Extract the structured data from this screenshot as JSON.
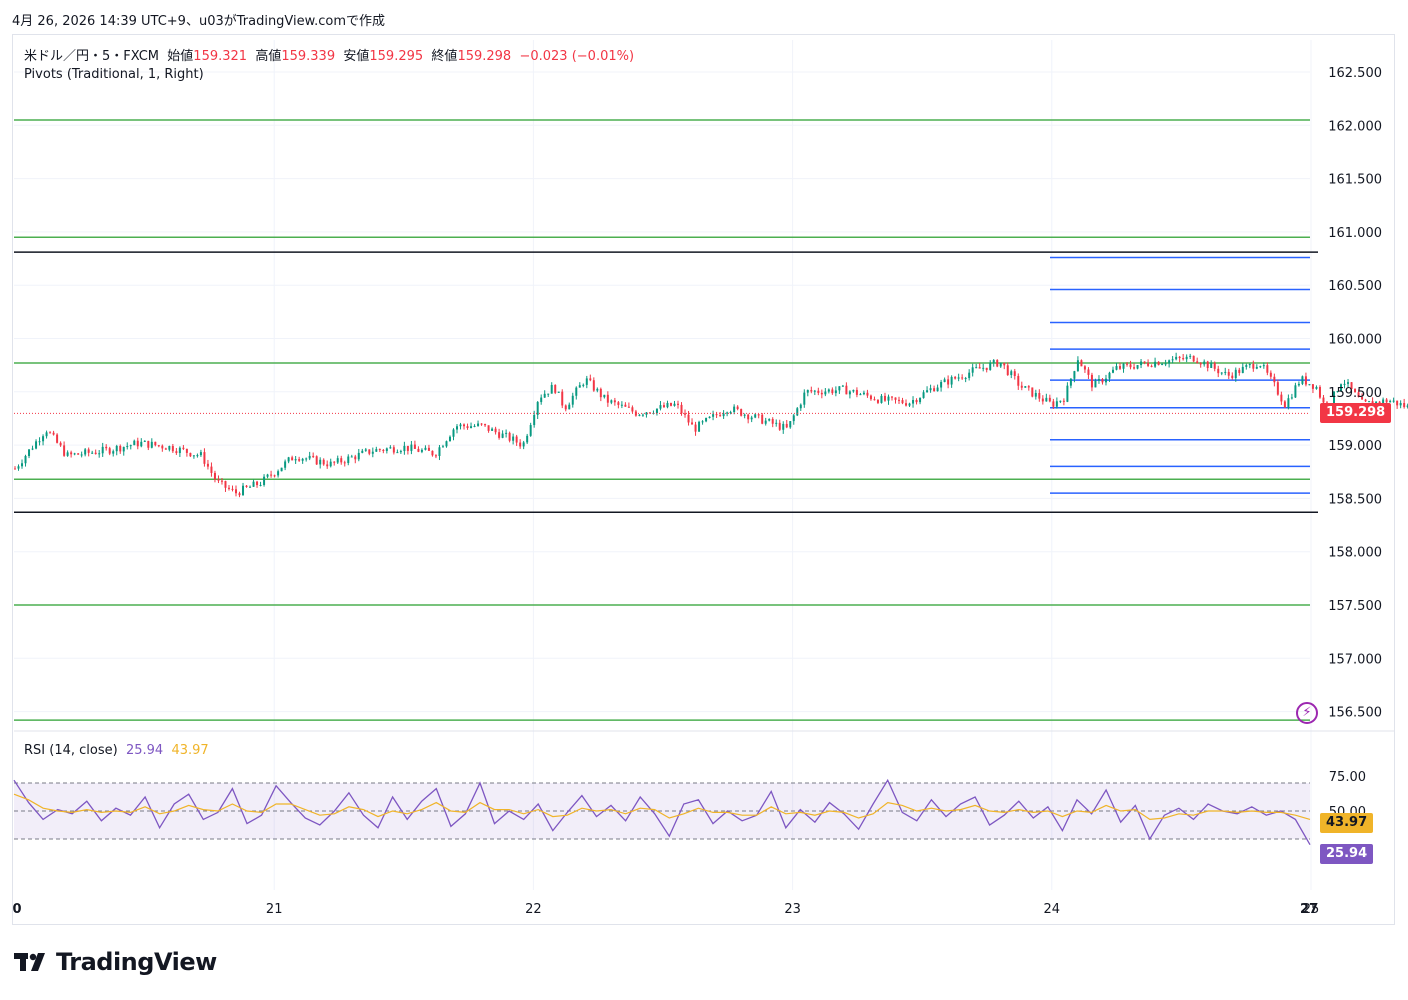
{
  "header": {
    "text": "4月 26, 2026 14:39 UTC+9、u03がTradingView.comで作成"
  },
  "legend": {
    "symbol": "米ドル／円・5・FXCM",
    "open_label": "始値",
    "open": "159.321",
    "high_label": "高値",
    "high": "159.339",
    "low_label": "安値",
    "low": "159.295",
    "close_label": "終値",
    "close": "159.298",
    "change": "−0.023 (−0.01%)",
    "pivots": "Pivots (Traditional, 1, Right)",
    "rsi_label": "RSI (14, close)",
    "rsi_value": "25.94",
    "rsi_ma_value": "43.97"
  },
  "price_tag": {
    "value": "159.298",
    "color": "#f23645"
  },
  "rsi_tags": {
    "ma": "43.97",
    "rsi": "25.94",
    "ma_color": "#f0b429",
    "rsi_color": "#7e57c2"
  },
  "logo": {
    "text": "TradingView",
    "icon": "tradingview-logo-icon"
  },
  "bolt_icon": "lightning-icon",
  "chart_data": [
    {
      "type": "candlestick",
      "title": "",
      "y_ticks": [
        "162.500",
        "162.000",
        "161.500",
        "161.000",
        "160.500",
        "160.000",
        "159.500",
        "159.000",
        "158.500",
        "158.000",
        "157.500",
        "157.000",
        "156.500"
      ],
      "ylim": [
        156.35,
        162.75
      ],
      "x_ticks": [
        "0",
        "21",
        "22",
        "23",
        "24",
        "25",
        "27"
      ],
      "price_path": [
        {
          "day": 20.0,
          "price": 158.78
        },
        {
          "day": 20.12,
          "price": 159.15
        },
        {
          "day": 20.2,
          "price": 158.9
        },
        {
          "day": 20.35,
          "price": 158.95
        },
        {
          "day": 20.48,
          "price": 159.02
        },
        {
          "day": 20.6,
          "price": 158.98
        },
        {
          "day": 20.72,
          "price": 158.9
        },
        {
          "day": 20.78,
          "price": 158.65
        },
        {
          "day": 20.85,
          "price": 158.55
        },
        {
          "day": 20.95,
          "price": 158.65
        },
        {
          "day": 21.08,
          "price": 158.9
        },
        {
          "day": 21.22,
          "price": 158.82
        },
        {
          "day": 21.38,
          "price": 158.95
        },
        {
          "day": 21.5,
          "price": 158.98
        },
        {
          "day": 21.62,
          "price": 158.92
        },
        {
          "day": 21.7,
          "price": 159.18
        },
        {
          "day": 21.8,
          "price": 159.18
        },
        {
          "day": 21.92,
          "price": 159.05
        },
        {
          "day": 21.96,
          "price": 159.0
        },
        {
          "day": 22.02,
          "price": 159.45
        },
        {
          "day": 22.08,
          "price": 159.55
        },
        {
          "day": 22.12,
          "price": 159.35
        },
        {
          "day": 22.2,
          "price": 159.62
        },
        {
          "day": 22.28,
          "price": 159.42
        },
        {
          "day": 22.4,
          "price": 159.3
        },
        {
          "day": 22.55,
          "price": 159.38
        },
        {
          "day": 22.62,
          "price": 159.15
        },
        {
          "day": 22.75,
          "price": 159.35
        },
        {
          "day": 22.9,
          "price": 159.22
        },
        {
          "day": 22.98,
          "price": 159.15
        },
        {
          "day": 23.05,
          "price": 159.5
        },
        {
          "day": 23.2,
          "price": 159.52
        },
        {
          "day": 23.35,
          "price": 159.42
        },
        {
          "day": 23.45,
          "price": 159.4
        },
        {
          "day": 23.55,
          "price": 159.55
        },
        {
          "day": 23.7,
          "price": 159.7
        },
        {
          "day": 23.8,
          "price": 159.78
        },
        {
          "day": 23.88,
          "price": 159.55
        },
        {
          "day": 24.0,
          "price": 159.38
        },
        {
          "day": 24.05,
          "price": 159.45
        },
        {
          "day": 24.1,
          "price": 159.82
        },
        {
          "day": 24.16,
          "price": 159.55
        },
        {
          "day": 24.25,
          "price": 159.72
        },
        {
          "day": 24.4,
          "price": 159.78
        },
        {
          "day": 24.55,
          "price": 159.82
        },
        {
          "day": 24.68,
          "price": 159.65
        },
        {
          "day": 24.8,
          "price": 159.78
        },
        {
          "day": 24.86,
          "price": 159.55
        },
        {
          "day": 24.9,
          "price": 159.38
        },
        {
          "day": 24.96,
          "price": 159.62
        },
        {
          "day": 25.02,
          "price": 159.55
        },
        {
          "day": 25.06,
          "price": 159.32
        },
        {
          "day": 25.12,
          "price": 159.62
        },
        {
          "day": 25.2,
          "price": 159.38
        },
        {
          "day": 25.3,
          "price": 159.42
        },
        {
          "day": 25.38,
          "price": 159.35
        },
        {
          "day": 25.4,
          "price": 159.3
        }
      ],
      "pivot_levels_green": [
        162.05,
        160.95,
        159.77,
        158.68,
        157.5,
        156.42
      ],
      "pivot_levels_black": [
        160.81,
        158.37
      ],
      "pivot_levels_blue": [
        160.76,
        160.46,
        160.15,
        159.9,
        159.61,
        159.35,
        159.05,
        158.8,
        158.55
      ],
      "last_price": 159.298
    },
    {
      "type": "line",
      "title": "",
      "y_ticks": [
        "75.00",
        "50.00"
      ],
      "ylim": [
        15,
        100
      ],
      "band": [
        30,
        70
      ],
      "series": [
        {
          "values": [
            72,
            56,
            44,
            51,
            48,
            57,
            43,
            52,
            47,
            60,
            38,
            55,
            62,
            44,
            49,
            66,
            41,
            47,
            68,
            56,
            45,
            40,
            50,
            63,
            47,
            38,
            60,
            44,
            57,
            66,
            39,
            48,
            70,
            41,
            50,
            44,
            55,
            36,
            49,
            61,
            46,
            54,
            43,
            60,
            48,
            32,
            55,
            58,
            41,
            50,
            43,
            47,
            64,
            38,
            51,
            42,
            56,
            48,
            37,
            55,
            72,
            49,
            43,
            58,
            46,
            55,
            60,
            40,
            47,
            57,
            45,
            53,
            36,
            58,
            48,
            65,
            42,
            54,
            30,
            47,
            52,
            44,
            55,
            50,
            48,
            53,
            47,
            50,
            44,
            25.94
          ]
        },
        {
          "values": [
            62,
            58,
            52,
            50,
            49,
            51,
            49,
            50,
            49,
            53,
            48,
            50,
            54,
            51,
            50,
            55,
            50,
            49,
            55,
            55,
            51,
            47,
            48,
            53,
            51,
            46,
            50,
            48,
            51,
            56,
            50,
            49,
            56,
            51,
            51,
            48,
            51,
            46,
            47,
            52,
            50,
            51,
            48,
            52,
            51,
            45,
            48,
            52,
            49,
            49,
            47,
            47,
            53,
            48,
            49,
            47,
            50,
            49,
            45,
            48,
            56,
            54,
            50,
            52,
            50,
            51,
            54,
            50,
            49,
            51,
            49,
            50,
            46,
            50,
            49,
            54,
            50,
            51,
            44,
            45,
            48,
            47,
            50,
            50,
            49,
            50,
            49,
            49,
            47,
            43.97
          ]
        }
      ]
    }
  ]
}
